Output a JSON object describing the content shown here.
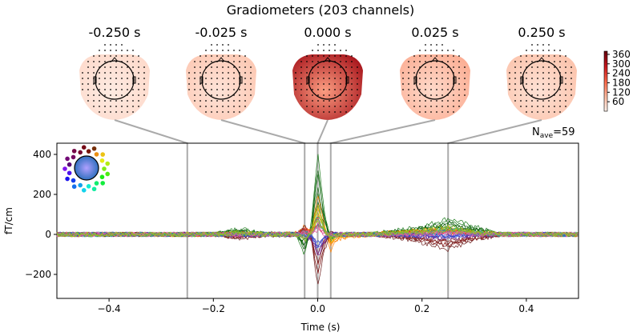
{
  "chart_data": {
    "type": "line",
    "title": "Gradiometers (203 channels)",
    "xlabel": "Time (s)",
    "ylabel": "fT/cm",
    "xlim": [
      -0.5,
      0.5
    ],
    "ylim": [
      -320,
      456
    ],
    "xticks": [
      -0.4,
      -0.2,
      0.0,
      0.2,
      0.4
    ],
    "xtick_labels": [
      "−0.4",
      "−0.2",
      "0.0",
      "0.2",
      "0.4"
    ],
    "yticks": [
      -200,
      0,
      200,
      400
    ],
    "ytick_labels": [
      "−200",
      "0",
      "200",
      "400"
    ],
    "nave_label": "N",
    "nave_sub": "ave",
    "nave_value": "=59",
    "grid": false,
    "marker_lines_color": "#aaaaaa",
    "topomap_times": [
      -0.25,
      -0.025,
      0.0,
      0.025,
      0.25
    ],
    "topomaps": [
      {
        "label": "-0.250 s",
        "level": 0.12
      },
      {
        "label": "-0.025 s",
        "level": 0.2
      },
      {
        "label": "0.000 s",
        "level": 0.85
      },
      {
        "label": "0.025 s",
        "level": 0.3
      },
      {
        "label": "0.250 s",
        "level": 0.22
      }
    ],
    "colorbar": {
      "colormap": "Reds",
      "ticks": [
        "60",
        "120",
        "180",
        "240",
        "300",
        "360"
      ],
      "range": [
        0,
        380
      ]
    },
    "x": [
      -0.5,
      -0.2,
      -0.15,
      -0.1,
      -0.04,
      -0.025,
      -0.012,
      0.0,
      0.012,
      0.025,
      0.04,
      0.1,
      0.15,
      0.2,
      0.25,
      0.3,
      0.35,
      0.5
    ],
    "series": [
      {
        "color": "#1a7a1a",
        "values": [
          0,
          0,
          30,
          5,
          0,
          -100,
          60,
          410,
          120,
          -40,
          0,
          0,
          20,
          40,
          80,
          40,
          0,
          0
        ]
      },
      {
        "color": "#0b5a0b",
        "values": [
          0,
          0,
          20,
          5,
          0,
          -70,
          40,
          330,
          90,
          -20,
          0,
          0,
          15,
          30,
          60,
          30,
          0,
          0
        ]
      },
      {
        "color": "#ff8000",
        "values": [
          0,
          0,
          5,
          0,
          5,
          40,
          10,
          200,
          60,
          -80,
          -20,
          0,
          10,
          20,
          30,
          10,
          0,
          0
        ]
      },
      {
        "color": "#ffb000",
        "values": [
          0,
          0,
          5,
          0,
          0,
          20,
          10,
          140,
          40,
          -50,
          -10,
          0,
          5,
          15,
          20,
          5,
          0,
          0
        ]
      },
      {
        "color": "#6b1a1a",
        "values": [
          0,
          0,
          -20,
          -5,
          0,
          40,
          -30,
          -270,
          -90,
          10,
          0,
          0,
          -15,
          -40,
          -75,
          -30,
          0,
          0
        ]
      },
      {
        "color": "#8b2020",
        "values": [
          0,
          0,
          -15,
          0,
          0,
          30,
          -20,
          -200,
          -60,
          5,
          0,
          0,
          -10,
          -30,
          -55,
          -20,
          0,
          0
        ]
      },
      {
        "color": "#e03030",
        "values": [
          0,
          0,
          5,
          0,
          0,
          30,
          20,
          80,
          20,
          -10,
          0,
          0,
          0,
          10,
          20,
          5,
          0,
          0
        ]
      },
      {
        "color": "#7030a0",
        "values": [
          0,
          0,
          -5,
          0,
          0,
          -20,
          -20,
          -120,
          -40,
          5,
          0,
          0,
          -5,
          -10,
          -20,
          -5,
          0,
          0
        ]
      },
      {
        "color": "#3050d0",
        "values": [
          0,
          0,
          0,
          0,
          0,
          -10,
          -10,
          -80,
          -20,
          0,
          0,
          0,
          0,
          -5,
          -10,
          0,
          0,
          0
        ]
      },
      {
        "color": "#20a0a0",
        "values": [
          0,
          0,
          5,
          0,
          0,
          10,
          10,
          100,
          30,
          -10,
          0,
          0,
          5,
          10,
          30,
          10,
          0,
          0
        ]
      },
      {
        "color": "#e060a0",
        "values": [
          0,
          0,
          0,
          0,
          0,
          10,
          5,
          50,
          10,
          -5,
          0,
          0,
          0,
          5,
          10,
          0,
          0,
          0
        ]
      },
      {
        "color": "#90c020",
        "values": [
          0,
          0,
          10,
          0,
          0,
          -30,
          20,
          150,
          40,
          -20,
          0,
          0,
          10,
          20,
          40,
          15,
          0,
          0
        ]
      }
    ]
  }
}
